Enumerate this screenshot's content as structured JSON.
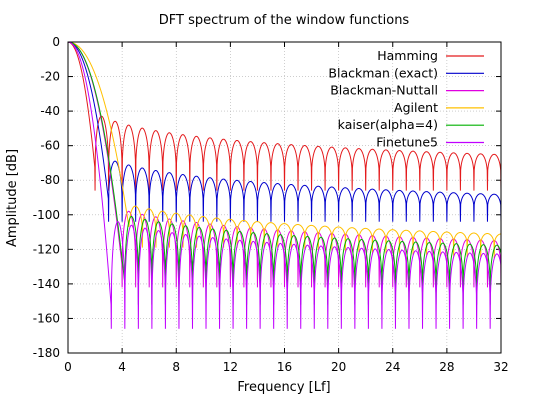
{
  "chart_data": {
    "type": "line",
    "title": "DFT spectrum of the window functions",
    "xlabel": "Frequency [Lf]",
    "ylabel": "Amplitude [dB]",
    "xlim": [
      0,
      32
    ],
    "ylim": [
      -180,
      0
    ],
    "xticks": [
      0,
      4,
      8,
      12,
      16,
      20,
      24,
      28,
      32
    ],
    "yticks": [
      0,
      -20,
      -40,
      -60,
      -80,
      -100,
      -120,
      -140,
      -160,
      -180
    ],
    "grid": true,
    "legend_position": "top-right",
    "series": [
      {
        "name": "Hamming",
        "color": "#e41a1c",
        "null_first": 2,
        "sidelobe_peak": -43,
        "null_depth": -72,
        "decay_db_per_decade": 20
      },
      {
        "name": "Blackman (exact)",
        "color": "#0000cc",
        "null_first": 3,
        "sidelobe_peak": -69,
        "null_depth": -90,
        "decay_db_per_decade": 20
      },
      {
        "name": "Blackman-Nuttall",
        "color": "#e000e0",
        "null_first": 4,
        "sidelobe_peak": -98,
        "null_depth": -128,
        "decay_db_per_decade": 20
      },
      {
        "name": "Agilent",
        "color": "#ffc000",
        "null_first": 4.5,
        "sidelobe_peak": -95,
        "null_depth": -105,
        "decay_db_per_decade": 20
      },
      {
        "name": "kaiser(alpha=4)",
        "color": "#00b000",
        "null_first": 4.2,
        "sidelobe_peak": -101,
        "null_depth": -138,
        "decay_db_per_decade": 20
      },
      {
        "name": "Finetune5",
        "color": "#c000ff",
        "null_first": 3.2,
        "sidelobe_peak": -104,
        "null_depth": -152,
        "decay_db_per_decade": 20
      }
    ]
  }
}
